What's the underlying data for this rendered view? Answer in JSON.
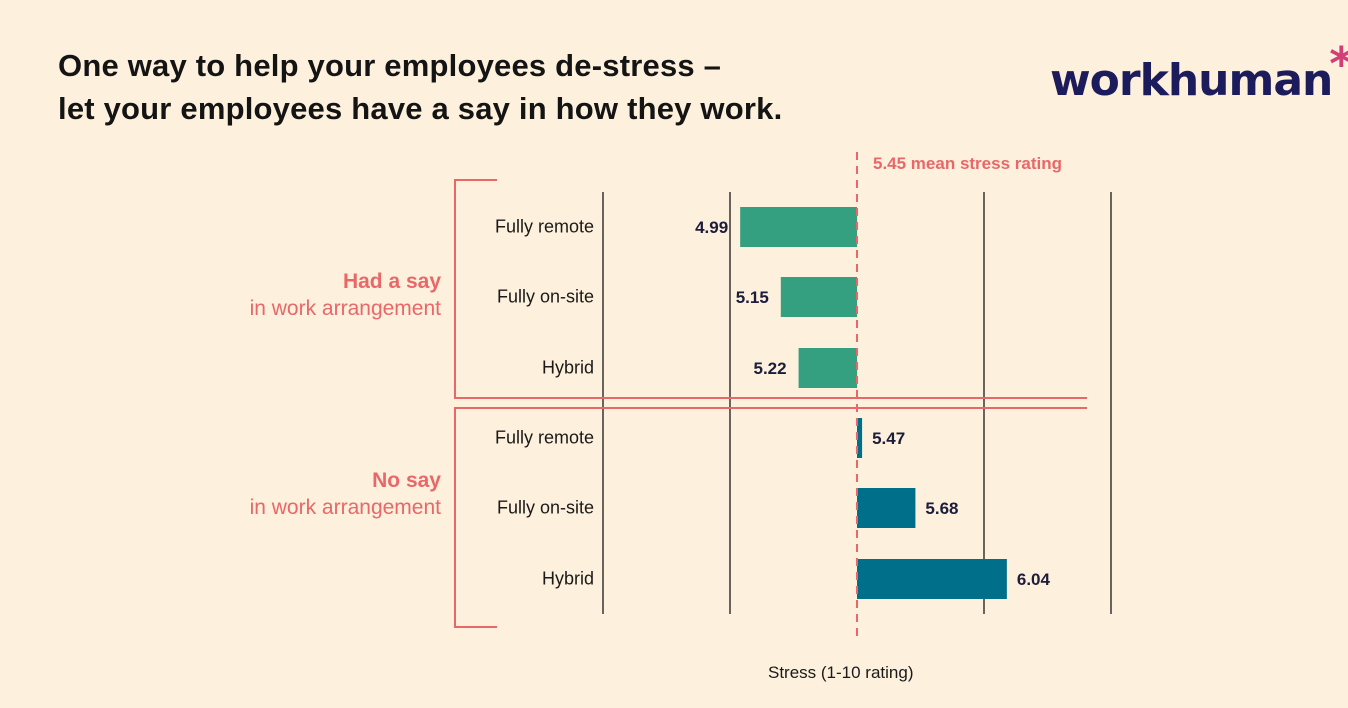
{
  "title_lines": [
    "One way to help your employees de-stress –",
    "let your employees have a say in how they work."
  ],
  "logo": "workhuman",
  "chart_data": {
    "type": "bar",
    "orientation": "horizontal",
    "xlabel": "Stress (1-10 rating)",
    "reference_line": {
      "value": 5.45,
      "label": "5.45 mean stress rating",
      "color": "#e8686a"
    },
    "groups": [
      {
        "label_bold": "Had a say",
        "label_sub": "in work arrangement",
        "color": "#35a07f",
        "categories": [
          "Fully remote",
          "Fully on-site",
          "Hybrid"
        ],
        "values": [
          4.99,
          5.15,
          5.22
        ]
      },
      {
        "label_bold": "No say",
        "label_sub": "in work arrangement",
        "color": "#006f8a",
        "categories": [
          "Fully remote",
          "Fully on-site",
          "Hybrid"
        ],
        "values": [
          5.47,
          5.68,
          6.04
        ]
      }
    ],
    "gridlines": [
      4.45,
      4.95,
      5.45,
      5.95,
      6.45
    ],
    "grid": true
  }
}
